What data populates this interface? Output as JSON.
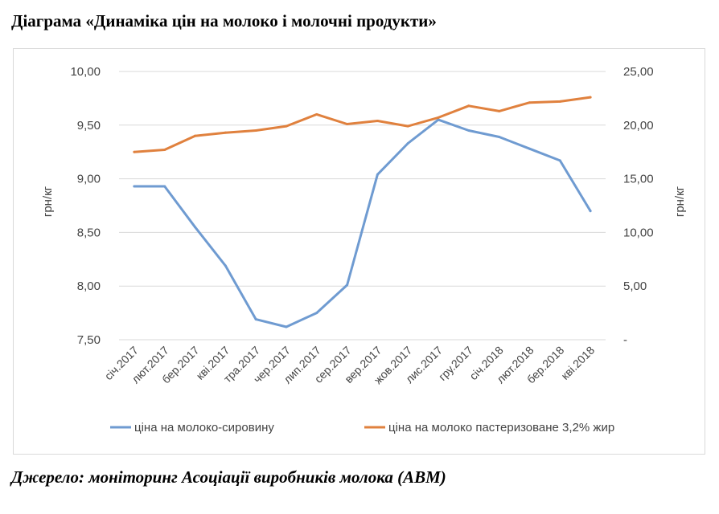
{
  "page": {
    "title": "Діаграма «Динаміка цін на молоко і молочні продукти»",
    "source": "Джерело: моніторинг Асоціації виробників молока (АВМ)"
  },
  "chart_data": {
    "type": "line",
    "categories": [
      "січ.2017",
      "лют.2017",
      "бер.2017",
      "кві.2017",
      "тра.2017",
      "чер.2017",
      "лип.2017",
      "сер.2017",
      "вер.2017",
      "жов.2017",
      "лис.2017",
      "гру.2017",
      "січ.2018",
      "лют.2018",
      "бер.2018",
      "кві.2018"
    ],
    "series": [
      {
        "name": "ціна на молоко-сировину",
        "axis": "left",
        "color": "#6f9bd1",
        "values": [
          8.93,
          8.93,
          8.55,
          8.19,
          7.69,
          7.62,
          7.75,
          8.01,
          9.04,
          9.33,
          9.55,
          9.45,
          9.39,
          9.28,
          9.17,
          8.7
        ]
      },
      {
        "name": "ціна на молоко пастеризоване 3,2% жир",
        "axis": "right",
        "color": "#e0813e",
        "values": [
          17.5,
          17.7,
          19.0,
          19.3,
          19.5,
          19.9,
          21.0,
          20.1,
          20.4,
          19.9,
          20.7,
          21.8,
          21.3,
          22.1,
          22.2,
          22.6
        ]
      }
    ],
    "y_left": {
      "label": "грн/кг",
      "range": [
        7.5,
        10.0
      ],
      "ticks": [
        7.5,
        8.0,
        8.5,
        9.0,
        9.5,
        10.0
      ],
      "tick_labels": [
        "7,50",
        "8,00",
        "8,50",
        "9,00",
        "9,50",
        "10,00"
      ]
    },
    "y_right": {
      "label": "грн/кг",
      "range": [
        0,
        25
      ],
      "ticks": [
        0,
        5,
        10,
        15,
        20,
        25
      ],
      "tick_labels": [
        "-",
        "5,00",
        "10,00",
        "15,00",
        "20,00",
        "25,00"
      ]
    },
    "grid": true,
    "legend_position": "bottom"
  }
}
